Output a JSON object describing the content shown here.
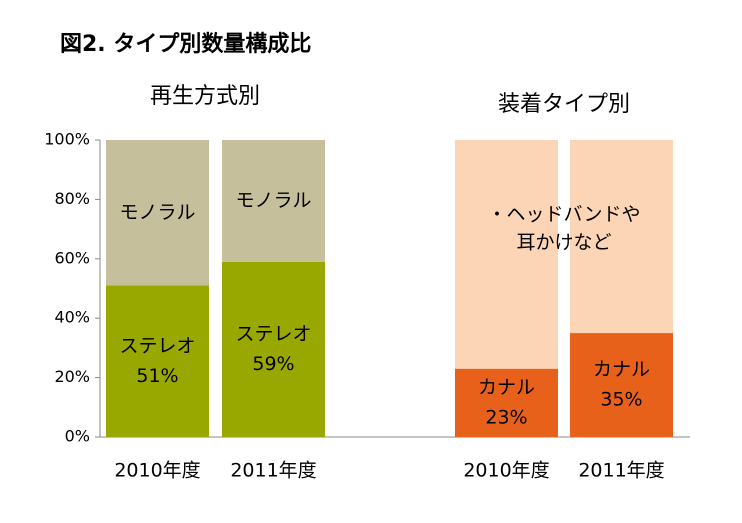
{
  "figure_title": "図2. タイプ別数量構成比",
  "chart_data": [
    {
      "type": "bar",
      "stacked": true,
      "title": "再生方式別",
      "categories": [
        "2010年度",
        "2011年度"
      ],
      "series": [
        {
          "name": "ステレオ",
          "values": [
            51,
            59
          ],
          "color": "#99a800",
          "labels": [
            "ステレオ\n51%",
            "ステレオ\n59%"
          ]
        },
        {
          "name": "モノラル",
          "values": [
            49,
            41
          ],
          "color": "#c5bf9b",
          "labels": [
            "モノラル",
            "モノラル"
          ]
        }
      ],
      "ylim": [
        0,
        100
      ],
      "yticks": [
        "0%",
        "20%",
        "40%",
        "60%",
        "80%",
        "100%"
      ]
    },
    {
      "type": "bar",
      "stacked": true,
      "title": "装着タイプ別",
      "categories": [
        "2010年度",
        "2011年度"
      ],
      "series": [
        {
          "name": "カナル",
          "values": [
            23,
            35
          ],
          "color": "#e8611a",
          "labels": [
            "カナル\n23%",
            "カナル\n35%"
          ]
        },
        {
          "name": "・ヘッドバンドや耳かけなど",
          "values": [
            77,
            65
          ],
          "color": "#fbd5b5"
        }
      ],
      "shared_label": "・ヘッドバンドや\n耳かけなど",
      "ylim": [
        0,
        100
      ]
    }
  ]
}
